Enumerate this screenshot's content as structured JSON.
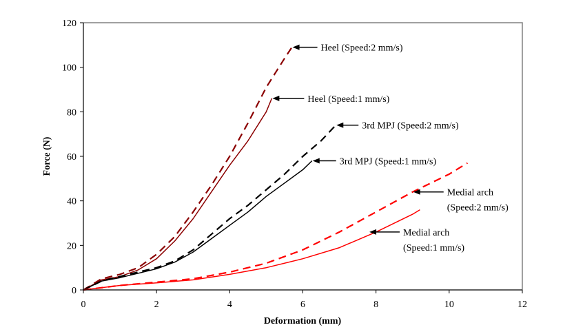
{
  "chart_data": {
    "type": "line",
    "title": "",
    "xlabel": "Deformation (mm)",
    "ylabel": "Force (N)",
    "xlim": [
      0,
      12
    ],
    "ylim": [
      0,
      120
    ],
    "xticks": [
      "0",
      "2",
      "4",
      "6",
      "8",
      "10",
      "12"
    ],
    "yticks": [
      "0",
      "20",
      "40",
      "60",
      "80",
      "100",
      "120"
    ],
    "grid": false,
    "legend": "none",
    "series": [
      {
        "name": "Heel (Speed:2 mm/s)",
        "color": "#8b0000",
        "style": "dashed",
        "x": [
          0,
          0.5,
          1,
          1.5,
          2,
          2.5,
          3,
          3.5,
          4,
          4.5,
          5,
          5.5,
          5.7
        ],
        "y": [
          0,
          5,
          7,
          10,
          16,
          24,
          35,
          47,
          60,
          75,
          91,
          104,
          109
        ]
      },
      {
        "name": "Heel (Speed:1 mm/s)",
        "color": "#8b0000",
        "style": "solid",
        "x": [
          0,
          0.5,
          1,
          1.5,
          2,
          2.5,
          3,
          3.5,
          4,
          4.5,
          5,
          5.15
        ],
        "y": [
          0,
          4.5,
          6,
          9,
          14,
          22,
          32,
          44,
          56,
          67,
          80,
          86
        ]
      },
      {
        "name": "3rd MPJ (Speed:2 mm/s)",
        "color": "#000000",
        "style": "dashed",
        "x": [
          0,
          0.5,
          1,
          1.5,
          2,
          2.5,
          3,
          3.5,
          4,
          4.5,
          5,
          5.5,
          6,
          6.5,
          6.9
        ],
        "y": [
          0,
          4,
          6,
          8,
          10,
          13,
          18,
          25,
          32,
          38,
          45,
          52,
          60,
          67,
          74
        ]
      },
      {
        "name": "3rd MPJ  (Speed:1 mm/s)",
        "color": "#000000",
        "style": "solid",
        "x": [
          0,
          0.5,
          1,
          1.5,
          2,
          2.5,
          3,
          3.5,
          4,
          4.5,
          5,
          5.5,
          6,
          6.25
        ],
        "y": [
          0,
          4,
          5.5,
          7.5,
          9.5,
          12.5,
          17,
          23,
          29,
          35,
          42,
          48,
          54,
          58
        ]
      },
      {
        "name": "Medial arch (Speed:2 mm/s)",
        "color": "#ff0000",
        "style": "dashed",
        "x": [
          0,
          1,
          2,
          3,
          4,
          5,
          6,
          7,
          8,
          9,
          10,
          10.5
        ],
        "y": [
          0,
          2,
          3.5,
          5,
          8,
          12,
          18,
          26,
          35,
          44,
          52,
          57
        ]
      },
      {
        "name": "Medial arch (Speed:1 mm/s)",
        "color": "#ff0000",
        "style": "solid",
        "x": [
          0,
          1,
          2,
          3,
          4,
          5,
          6,
          7,
          8,
          9,
          9.2
        ],
        "y": [
          0,
          2,
          3.2,
          4.5,
          7,
          10,
          14,
          19,
          26,
          34,
          36
        ]
      }
    ],
    "annotations": [
      {
        "lines": [
          "Heel (Speed:2 mm/s)"
        ],
        "target": [
          5.7,
          109
        ]
      },
      {
        "lines": [
          "Heel (Speed:1 mm/s)"
        ],
        "target": [
          5.15,
          86
        ]
      },
      {
        "lines": [
          "3rd MPJ  (Speed:2 mm/s)"
        ],
        "target": [
          6.9,
          74
        ]
      },
      {
        "lines": [
          "3rd MPJ  (Speed:1 mm/s)"
        ],
        "target": [
          6.25,
          58
        ]
      },
      {
        "lines": [
          "Medial arch",
          "(Speed:2 mm/s)"
        ],
        "target": [
          9.0,
          44
        ]
      },
      {
        "lines": [
          "Medial arch",
          "(Speed:1 mm/s)"
        ],
        "target": [
          7.8,
          26
        ]
      }
    ]
  }
}
